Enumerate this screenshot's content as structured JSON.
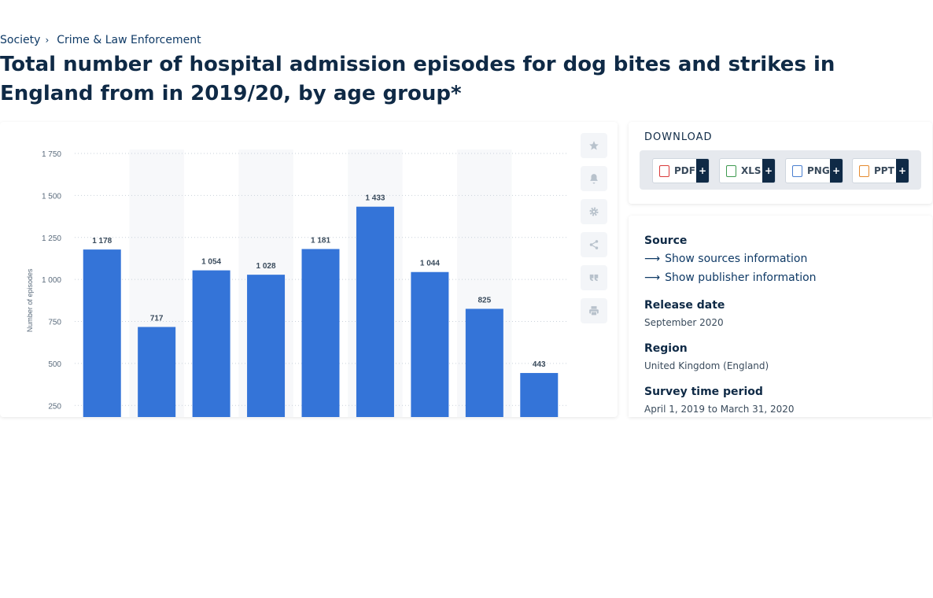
{
  "breadcrumb": {
    "items": [
      "Society",
      "Crime & Law Enforcement"
    ],
    "separator": "›"
  },
  "title": "Total number of hospital admission episodes for dog bites and strikes in England from in 2019/20, by age group*",
  "chart_data": {
    "type": "bar",
    "ylabel": "Number of episodes",
    "xlabel": "",
    "ylim": [
      0,
      1750
    ],
    "yticks": [
      250,
      500,
      750,
      1000,
      1250,
      1500,
      1750
    ],
    "ytick_labels": [
      "250",
      "500",
      "750",
      "1 000",
      "1 250",
      "1 500",
      "1 750"
    ],
    "values": [
      1178,
      717,
      1054,
      1028,
      1181,
      1433,
      1044,
      825,
      443
    ],
    "value_labels": [
      "1 178",
      "717",
      "1 054",
      "1 028",
      "1 181",
      "1 433",
      "1 044",
      "825",
      "443"
    ],
    "bar_color": "#3474d8",
    "grid": true
  },
  "toolbar": {
    "icons": [
      "star-icon",
      "bell-icon",
      "gear-icon",
      "share-icon",
      "quote-icon",
      "print-icon"
    ]
  },
  "download": {
    "title": "DOWNLOAD",
    "buttons": [
      {
        "label": "PDF",
        "plus": "+",
        "color": "#d93a3a"
      },
      {
        "label": "XLS",
        "plus": "+",
        "color": "#3e9a4f"
      },
      {
        "label": "PNG",
        "plus": "+",
        "color": "#4a7fd0"
      },
      {
        "label": "PPT",
        "plus": "+",
        "color": "#e58a2e"
      }
    ]
  },
  "meta": {
    "source_heading": "Source",
    "show_sources": "Show sources information",
    "show_publisher": "Show publisher information",
    "release_heading": "Release date",
    "release_value": "September 2020",
    "region_heading": "Region",
    "region_value": "United Kingdom (England)",
    "survey_heading": "Survey time period",
    "survey_value": "April 1, 2019 to March 31, 2020"
  }
}
